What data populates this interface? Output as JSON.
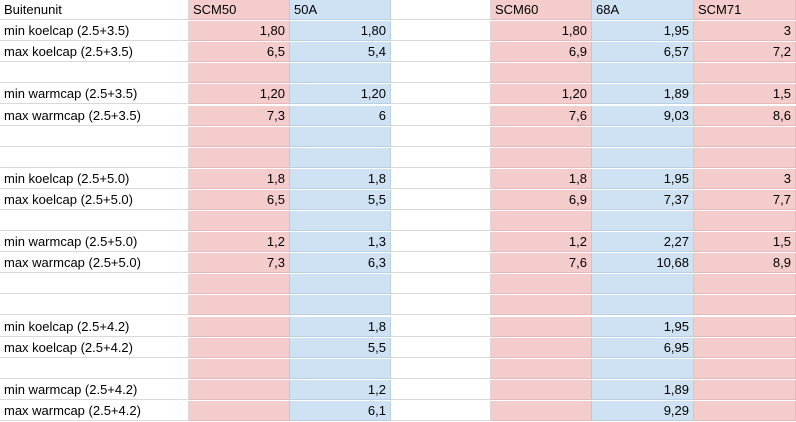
{
  "header": {
    "label": "Buitenunit",
    "cols": [
      "SCM50",
      "50A",
      "",
      "SCM60",
      "68A",
      "SCM71"
    ]
  },
  "colors": {
    "pink": "#f4cccc",
    "blue": "#cfe2f3",
    "grid": "#d9d9d9"
  },
  "rows": [
    {
      "label": "min koelcap (2.5+3.5)",
      "values": [
        "1,80",
        "1,80",
        "",
        "1,80",
        "1,95",
        "3"
      ]
    },
    {
      "label": "max koelcap (2.5+3.5)",
      "values": [
        "6,5",
        "5,4",
        "",
        "6,9",
        "6,57",
        "7,2"
      ]
    },
    {
      "label": "",
      "values": [
        "",
        "",
        "",
        "",
        "",
        ""
      ]
    },
    {
      "label": "min warmcap (2.5+3.5)",
      "values": [
        "1,20",
        "1,20",
        "",
        "1,20",
        "1,89",
        "1,5"
      ]
    },
    {
      "label": "max warmcap (2.5+3.5)",
      "values": [
        "7,3",
        "6",
        "",
        "7,6",
        "9,03",
        "8,6"
      ]
    },
    {
      "label": "",
      "values": [
        "",
        "",
        "",
        "",
        "",
        ""
      ]
    },
    {
      "label": "",
      "values": [
        "",
        "",
        "",
        "",
        "",
        ""
      ]
    },
    {
      "label": "min koelcap (2.5+5.0)",
      "values": [
        "1,8",
        "1,8",
        "",
        "1,8",
        "1,95",
        "3"
      ]
    },
    {
      "label": "max koelcap (2.5+5.0)",
      "values": [
        "6,5",
        "5,5",
        "",
        "6,9",
        "7,37",
        "7,7"
      ]
    },
    {
      "label": "",
      "values": [
        "",
        "",
        "",
        "",
        "",
        ""
      ]
    },
    {
      "label": "min warmcap (2.5+5.0)",
      "values": [
        "1,2",
        "1,3",
        "",
        "1,2",
        "2,27",
        "1,5"
      ]
    },
    {
      "label": "max warmcap (2.5+5.0)",
      "values": [
        "7,3",
        "6,3",
        "",
        "7,6",
        "10,68",
        "8,9"
      ]
    },
    {
      "label": "",
      "values": [
        "",
        "",
        "",
        "",
        "",
        ""
      ]
    },
    {
      "label": "",
      "values": [
        "",
        "",
        "",
        "",
        "",
        ""
      ]
    },
    {
      "label": "min koelcap (2.5+4.2)",
      "values": [
        "",
        "1,8",
        "",
        "",
        "1,95",
        ""
      ]
    },
    {
      "label": "max koelcap (2.5+4.2)",
      "values": [
        "",
        "5,5",
        "",
        "",
        "6,95",
        ""
      ]
    },
    {
      "label": "",
      "values": [
        "",
        "",
        "",
        "",
        "",
        ""
      ]
    },
    {
      "label": "min warmcap (2.5+4.2)",
      "values": [
        "",
        "1,2",
        "",
        "",
        "1,89",
        ""
      ]
    },
    {
      "label": "max warmcap (2.5+4.2)",
      "values": [
        "",
        "6,1",
        "",
        "",
        "9,29",
        ""
      ]
    }
  ]
}
